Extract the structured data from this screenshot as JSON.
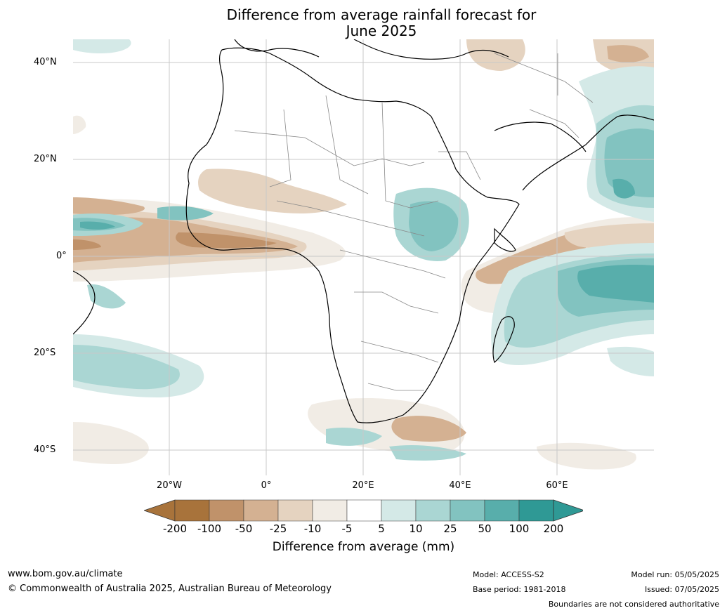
{
  "title_line1": "Difference from average rainfall forecast for",
  "title_line2": "June 2025",
  "axes": {
    "lat_labels": [
      "40°N",
      "20°N",
      "0°",
      "20°S",
      "40°S"
    ],
    "lon_labels": [
      "20°W",
      "0°",
      "20°E",
      "40°E",
      "60°E"
    ]
  },
  "colorbar": {
    "title": "Difference from average (mm)",
    "tick_labels": [
      "-200",
      "-100",
      "-50",
      "-25",
      "-10",
      "-5",
      "5",
      "10",
      "25",
      "50",
      "100",
      "200"
    ],
    "colors": [
      "#a8733b",
      "#c0926a",
      "#d4b192",
      "#e5d3c0",
      "#f1ece5",
      "#ffffff",
      "#d4e9e7",
      "#aad6d3",
      "#82c3c0",
      "#58aeab",
      "#2f9995"
    ],
    "extend_low_color": "#a8733b",
    "extend_high_color": "#2f9995"
  },
  "footer": {
    "website": "www.bom.gov.au/climate",
    "copyright": "© Commonwealth of Australia 2025, Australian Bureau of Meteorology",
    "model": "Model: ACCESS-S2",
    "base_period": "Base period: 1981-2018",
    "model_run": "Model run: 05/05/2025",
    "issued": "Issued: 07/05/2025",
    "disclaimer": "Boundaries are not considered authoritative"
  }
}
